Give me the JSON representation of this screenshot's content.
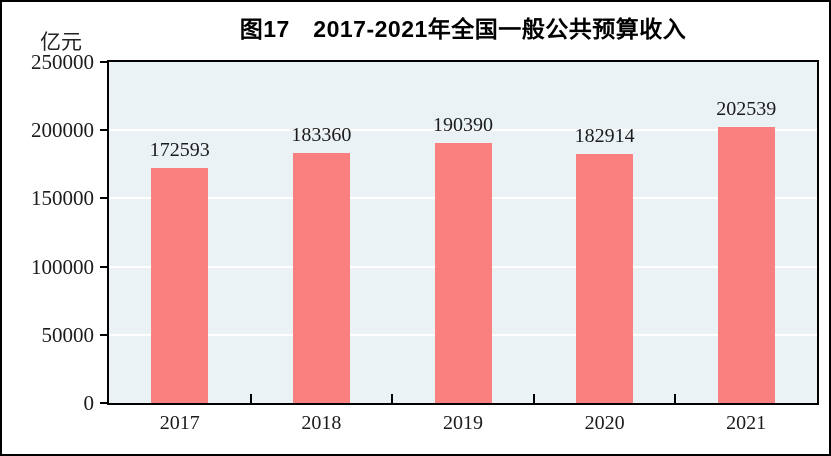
{
  "title": "图17　2017-2021年全国一般公共预算收入",
  "unit_label": "亿元",
  "chart_data": {
    "type": "bar",
    "title": "图17　2017-2021年全国一般公共预算收入",
    "ylabel": "亿元",
    "xlabel": "",
    "categories": [
      "2017",
      "2018",
      "2019",
      "2020",
      "2021"
    ],
    "values": [
      172593,
      183360,
      190390,
      182914,
      202539
    ],
    "ylim": [
      0,
      250000
    ],
    "yticks": [
      0,
      50000,
      100000,
      150000,
      200000,
      250000
    ],
    "grid": true,
    "legend": "none",
    "data_labels": true,
    "colors": {
      "bar_fill": "#fa8080",
      "plot_background": "#ebf2f6",
      "gridline": "#ffffff",
      "axis": "#000000",
      "text": "#1c1c1c"
    }
  }
}
